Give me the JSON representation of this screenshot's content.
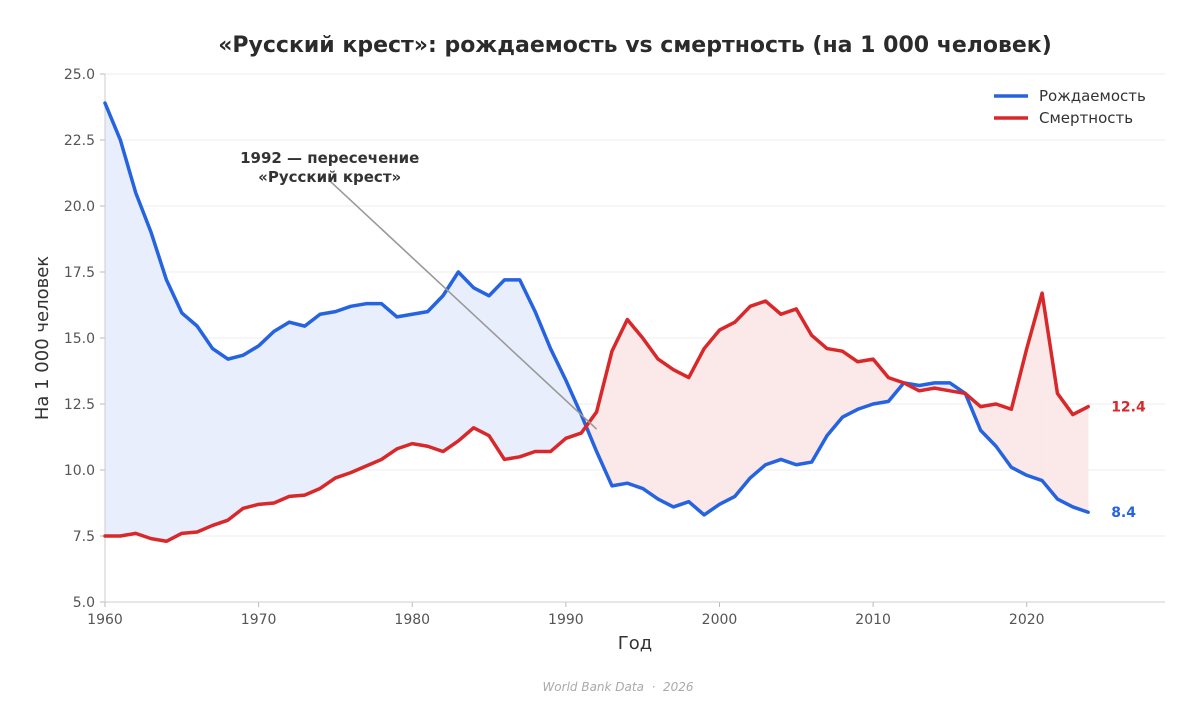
{
  "chart_data": {
    "type": "line",
    "title": "«Русский крест»: рождаемость vs смертность (на 1 000 человек)",
    "xlabel": "Год",
    "ylabel": "На 1 000 человек",
    "xlim": [
      1960,
      2029
    ],
    "ylim": [
      5.0,
      25.0
    ],
    "xticks": [
      1960,
      1970,
      1980,
      1990,
      2000,
      2010,
      2020
    ],
    "yticks": [
      "5.0",
      "7.5",
      "10.0",
      "12.5",
      "15.0",
      "17.5",
      "20.0",
      "22.5",
      "25.0"
    ],
    "grid": true,
    "legend_position": "top-right",
    "x": [
      1960,
      1961,
      1962,
      1963,
      1964,
      1965,
      1966,
      1967,
      1968,
      1969,
      1970,
      1971,
      1972,
      1973,
      1974,
      1975,
      1976,
      1977,
      1978,
      1979,
      1980,
      1981,
      1982,
      1983,
      1984,
      1985,
      1986,
      1987,
      1988,
      1989,
      1990,
      1991,
      1992,
      1993,
      1994,
      1995,
      1996,
      1997,
      1998,
      1999,
      2000,
      2001,
      2002,
      2003,
      2004,
      2005,
      2006,
      2007,
      2008,
      2009,
      2010,
      2011,
      2012,
      2013,
      2014,
      2015,
      2016,
      2017,
      2018,
      2019,
      2020,
      2021,
      2022,
      2023,
      2024
    ],
    "series": [
      {
        "name": "Рождаемость",
        "color": "#2563e0",
        "fill": "#e8eefb",
        "values": [
          23.9,
          22.5,
          20.5,
          19.0,
          17.2,
          15.95,
          15.45,
          14.6,
          14.2,
          14.35,
          14.7,
          15.25,
          15.6,
          15.45,
          15.9,
          16.0,
          16.2,
          16.3,
          16.3,
          15.8,
          15.9,
          16.0,
          16.6,
          17.5,
          16.9,
          16.6,
          17.2,
          17.2,
          16.0,
          14.6,
          13.4,
          12.1,
          10.7,
          9.4,
          9.5,
          9.3,
          8.9,
          8.6,
          8.8,
          8.3,
          8.7,
          9.0,
          9.7,
          10.2,
          10.4,
          10.2,
          10.3,
          11.3,
          12.0,
          12.3,
          12.5,
          12.6,
          13.3,
          13.2,
          13.3,
          13.3,
          12.9,
          11.5,
          10.9,
          10.1,
          9.8,
          9.6,
          8.9,
          8.6,
          8.4
        ]
      },
      {
        "name": "Смертность",
        "color": "#d8282a",
        "fill": "#fbe8e8",
        "values": [
          7.5,
          7.5,
          7.6,
          7.4,
          7.3,
          7.6,
          7.65,
          7.9,
          8.1,
          8.55,
          8.7,
          8.75,
          9.0,
          9.05,
          9.3,
          9.7,
          9.9,
          10.15,
          10.4,
          10.8,
          11.0,
          10.9,
          10.7,
          11.1,
          11.6,
          11.3,
          10.4,
          10.5,
          10.7,
          10.7,
          11.2,
          11.4,
          12.2,
          14.5,
          15.7,
          15.0,
          14.2,
          13.8,
          13.5,
          14.6,
          15.3,
          15.6,
          16.2,
          16.4,
          15.9,
          16.1,
          15.1,
          14.6,
          14.5,
          14.1,
          14.2,
          13.5,
          13.3,
          13.0,
          13.1,
          13.0,
          12.9,
          12.4,
          12.5,
          12.3,
          14.6,
          16.7,
          12.9,
          12.1,
          12.4
        ]
      }
    ],
    "annotation": {
      "lines": [
        "1992 — пересечение",
        "«Русский крест»"
      ],
      "target_x": 1992,
      "target_y": 11.55,
      "text_anchor_x": 1973,
      "text_anchor_y": 20.5
    },
    "end_labels": [
      "8.4",
      "12.4"
    ],
    "source": "World Bank Data  ·  2026"
  }
}
